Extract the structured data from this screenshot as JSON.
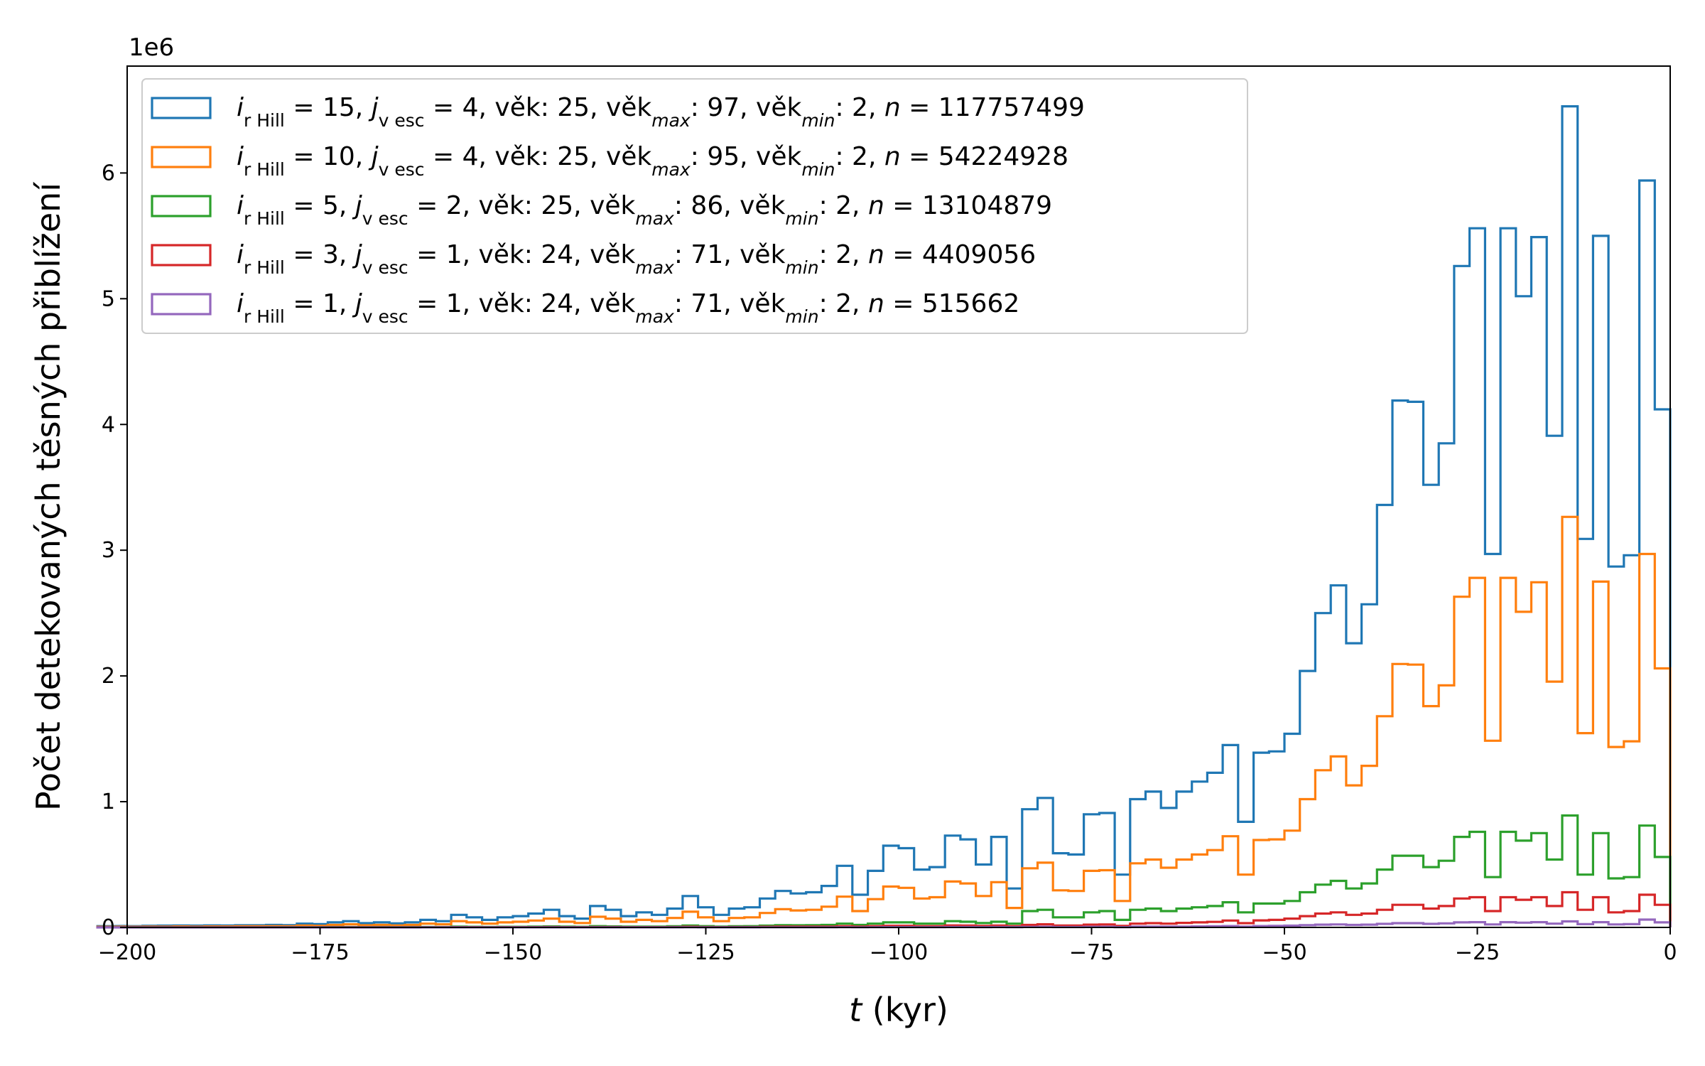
{
  "chart_data": {
    "type": "histogram-step",
    "title": "",
    "xlabel_var": "t",
    "xlabel_unit": " (kyr)",
    "ylabel": "Počet detekovaných těsných přiblížení",
    "y_offset_label": "1e6",
    "xlim": [
      -200,
      0
    ],
    "ylim": [
      0,
      6.85
    ],
    "y_scale_multiplier": 1000000,
    "bin_width": 2,
    "grid": false,
    "legend_position": "upper-left",
    "x_ticks": [
      -200,
      -175,
      -150,
      -125,
      -100,
      -75,
      -50,
      -25,
      0
    ],
    "x_tick_labels": [
      "−200",
      "−175",
      "−150",
      "−125",
      "−100",
      "−75",
      "−50",
      "−25",
      "0"
    ],
    "y_ticks": [
      0,
      1,
      2,
      3,
      4,
      5,
      6
    ],
    "y_tick_labels": [
      "0",
      "1",
      "2",
      "3",
      "4",
      "5",
      "6"
    ],
    "series": [
      {
        "color": "#1f77b4",
        "legend": {
          "i": "15",
          "j": "4",
          "age": "25",
          "age_max": "97",
          "age_min": "2",
          "n": "117757499"
        },
        "values": [
          0.01,
          0.01,
          0.012,
          0.01,
          0.013,
          0.014,
          0.015,
          0.014,
          0.016,
          0.015,
          0.017,
          0.017,
          0.02,
          0.018,
          0.03,
          0.026,
          0.04,
          0.05,
          0.034,
          0.04,
          0.032,
          0.04,
          0.06,
          0.05,
          0.1,
          0.08,
          0.06,
          0.08,
          0.09,
          0.11,
          0.14,
          0.09,
          0.07,
          0.17,
          0.14,
          0.09,
          0.12,
          0.1,
          0.15,
          0.25,
          0.16,
          0.1,
          0.15,
          0.16,
          0.23,
          0.29,
          0.27,
          0.28,
          0.33,
          0.49,
          0.26,
          0.45,
          0.65,
          0.63,
          0.46,
          0.48,
          0.73,
          0.7,
          0.5,
          0.72,
          0.31,
          0.94,
          1.03,
          0.59,
          0.58,
          0.9,
          0.91,
          0.42,
          1.02,
          1.08,
          0.95,
          1.08,
          1.16,
          1.23,
          1.45,
          0.84,
          1.39,
          1.4,
          1.54,
          2.04,
          2.5,
          2.72,
          2.26,
          2.57,
          3.36,
          4.19,
          4.18,
          3.52,
          3.85,
          5.26,
          5.56,
          2.97,
          5.56,
          5.02,
          5.49,
          3.91,
          6.53,
          3.09,
          5.5,
          2.87,
          2.96,
          5.94,
          4.12
        ],
        "data_name_prefix": "blue"
      },
      {
        "color": "#ff7f0e",
        "legend": {
          "i": "10",
          "j": "4",
          "age": "25",
          "age_max": "95",
          "age_min": "2",
          "n": "54224928"
        },
        "values": [
          0.005,
          0.005,
          0.006,
          0.005,
          0.007,
          0.007,
          0.008,
          0.007,
          0.008,
          0.008,
          0.009,
          0.009,
          0.01,
          0.009,
          0.015,
          0.013,
          0.02,
          0.025,
          0.017,
          0.02,
          0.016,
          0.02,
          0.03,
          0.025,
          0.05,
          0.04,
          0.03,
          0.04,
          0.045,
          0.055,
          0.07,
          0.045,
          0.035,
          0.085,
          0.07,
          0.045,
          0.06,
          0.05,
          0.075,
          0.125,
          0.08,
          0.05,
          0.075,
          0.08,
          0.115,
          0.145,
          0.135,
          0.14,
          0.165,
          0.245,
          0.13,
          0.225,
          0.325,
          0.315,
          0.23,
          0.24,
          0.365,
          0.35,
          0.25,
          0.36,
          0.155,
          0.47,
          0.515,
          0.295,
          0.29,
          0.45,
          0.455,
          0.21,
          0.51,
          0.54,
          0.475,
          0.54,
          0.58,
          0.615,
          0.725,
          0.42,
          0.695,
          0.7,
          0.77,
          1.02,
          1.25,
          1.36,
          1.13,
          1.285,
          1.68,
          2.095,
          2.09,
          1.76,
          1.925,
          2.63,
          2.78,
          1.485,
          2.78,
          2.51,
          2.745,
          1.955,
          3.265,
          1.545,
          2.75,
          1.435,
          1.48,
          2.97,
          2.06
        ],
        "data_name_prefix": "orange"
      },
      {
        "color": "#2ca02c",
        "legend": {
          "i": " 5",
          "j": "2",
          "age": "25",
          "age_max": "86",
          "age_min": "2",
          "n": "13104879"
        },
        "values": [
          0.001,
          0.001,
          0.001,
          0.001,
          0.001,
          0.001,
          0.001,
          0.001,
          0.001,
          0.001,
          0.001,
          0.001,
          0.002,
          0.002,
          0.002,
          0.002,
          0.003,
          0.003,
          0.002,
          0.003,
          0.002,
          0.003,
          0.004,
          0.003,
          0.006,
          0.005,
          0.004,
          0.005,
          0.005,
          0.006,
          0.008,
          0.006,
          0.005,
          0.01,
          0.008,
          0.006,
          0.007,
          0.006,
          0.009,
          0.015,
          0.01,
          0.006,
          0.009,
          0.01,
          0.014,
          0.018,
          0.017,
          0.018,
          0.02,
          0.03,
          0.02,
          0.03,
          0.04,
          0.04,
          0.03,
          0.03,
          0.05,
          0.045,
          0.035,
          0.045,
          0.03,
          0.13,
          0.14,
          0.08,
          0.08,
          0.12,
          0.13,
          0.06,
          0.14,
          0.15,
          0.13,
          0.15,
          0.16,
          0.17,
          0.2,
          0.12,
          0.19,
          0.19,
          0.21,
          0.28,
          0.34,
          0.37,
          0.31,
          0.35,
          0.46,
          0.57,
          0.57,
          0.48,
          0.53,
          0.72,
          0.76,
          0.4,
          0.76,
          0.69,
          0.75,
          0.54,
          0.89,
          0.42,
          0.75,
          0.39,
          0.4,
          0.81,
          0.56
        ],
        "data_name_prefix": "green"
      },
      {
        "color": "#d62728",
        "legend": {
          "i": " 3",
          "j": "1",
          "age": "24",
          "age_max": "71",
          "age_min": "2",
          "n": "4409056"
        },
        "values": [
          0.0005,
          0.0005,
          0.0005,
          0.0005,
          0.0005,
          0.0005,
          0.0005,
          0.0005,
          0.0005,
          0.0005,
          0.0005,
          0.0005,
          0.001,
          0.001,
          0.001,
          0.001,
          0.001,
          0.001,
          0.001,
          0.001,
          0.001,
          0.001,
          0.001,
          0.001,
          0.002,
          0.002,
          0.001,
          0.002,
          0.002,
          0.002,
          0.003,
          0.002,
          0.002,
          0.003,
          0.003,
          0.002,
          0.002,
          0.002,
          0.003,
          0.005,
          0.003,
          0.002,
          0.003,
          0.003,
          0.005,
          0.006,
          0.006,
          0.006,
          0.007,
          0.01,
          0.007,
          0.01,
          0.013,
          0.013,
          0.01,
          0.01,
          0.016,
          0.015,
          0.012,
          0.015,
          0.01,
          0.02,
          0.025,
          0.015,
          0.015,
          0.022,
          0.024,
          0.012,
          0.03,
          0.034,
          0.03,
          0.036,
          0.04,
          0.044,
          0.055,
          0.034,
          0.056,
          0.06,
          0.07,
          0.09,
          0.11,
          0.12,
          0.1,
          0.11,
          0.14,
          0.18,
          0.18,
          0.15,
          0.17,
          0.23,
          0.24,
          0.13,
          0.24,
          0.22,
          0.24,
          0.17,
          0.28,
          0.14,
          0.24,
          0.12,
          0.13,
          0.26,
          0.18
        ],
        "data_name_prefix": "red"
      },
      {
        "color": "#9467bd",
        "legend": {
          "i": " 1",
          "j": "1",
          "age": "24",
          "age_max": "71",
          "age_min": "2",
          "n": "515662"
        },
        "values": [
          0.0001,
          0.0001,
          0.0001,
          0.0001,
          0.0001,
          0.0001,
          0.0001,
          0.0001,
          0.0001,
          0.0001,
          0.0001,
          0.0001,
          0.0002,
          0.0002,
          0.0002,
          0.0002,
          0.0002,
          0.0002,
          0.0002,
          0.0002,
          0.0002,
          0.0002,
          0.0003,
          0.0003,
          0.0005,
          0.0004,
          0.0003,
          0.0004,
          0.0004,
          0.0005,
          0.0006,
          0.0005,
          0.0004,
          0.0007,
          0.0006,
          0.0005,
          0.0005,
          0.0005,
          0.0007,
          0.001,
          0.0007,
          0.0005,
          0.0007,
          0.0007,
          0.001,
          0.001,
          0.001,
          0.001,
          0.0012,
          0.0018,
          0.0012,
          0.0018,
          0.0024,
          0.0024,
          0.0018,
          0.0018,
          0.0028,
          0.0027,
          0.0021,
          0.0027,
          0.002,
          0.004,
          0.005,
          0.003,
          0.003,
          0.0045,
          0.005,
          0.0025,
          0.006,
          0.007,
          0.006,
          0.007,
          0.008,
          0.009,
          0.011,
          0.007,
          0.011,
          0.012,
          0.014,
          0.018,
          0.022,
          0.024,
          0.02,
          0.022,
          0.028,
          0.034,
          0.034,
          0.028,
          0.032,
          0.04,
          0.042,
          0.024,
          0.042,
          0.038,
          0.042,
          0.03,
          0.048,
          0.026,
          0.042,
          0.024,
          0.026,
          0.062,
          0.04
        ],
        "data_name_prefix": "purple"
      }
    ]
  }
}
